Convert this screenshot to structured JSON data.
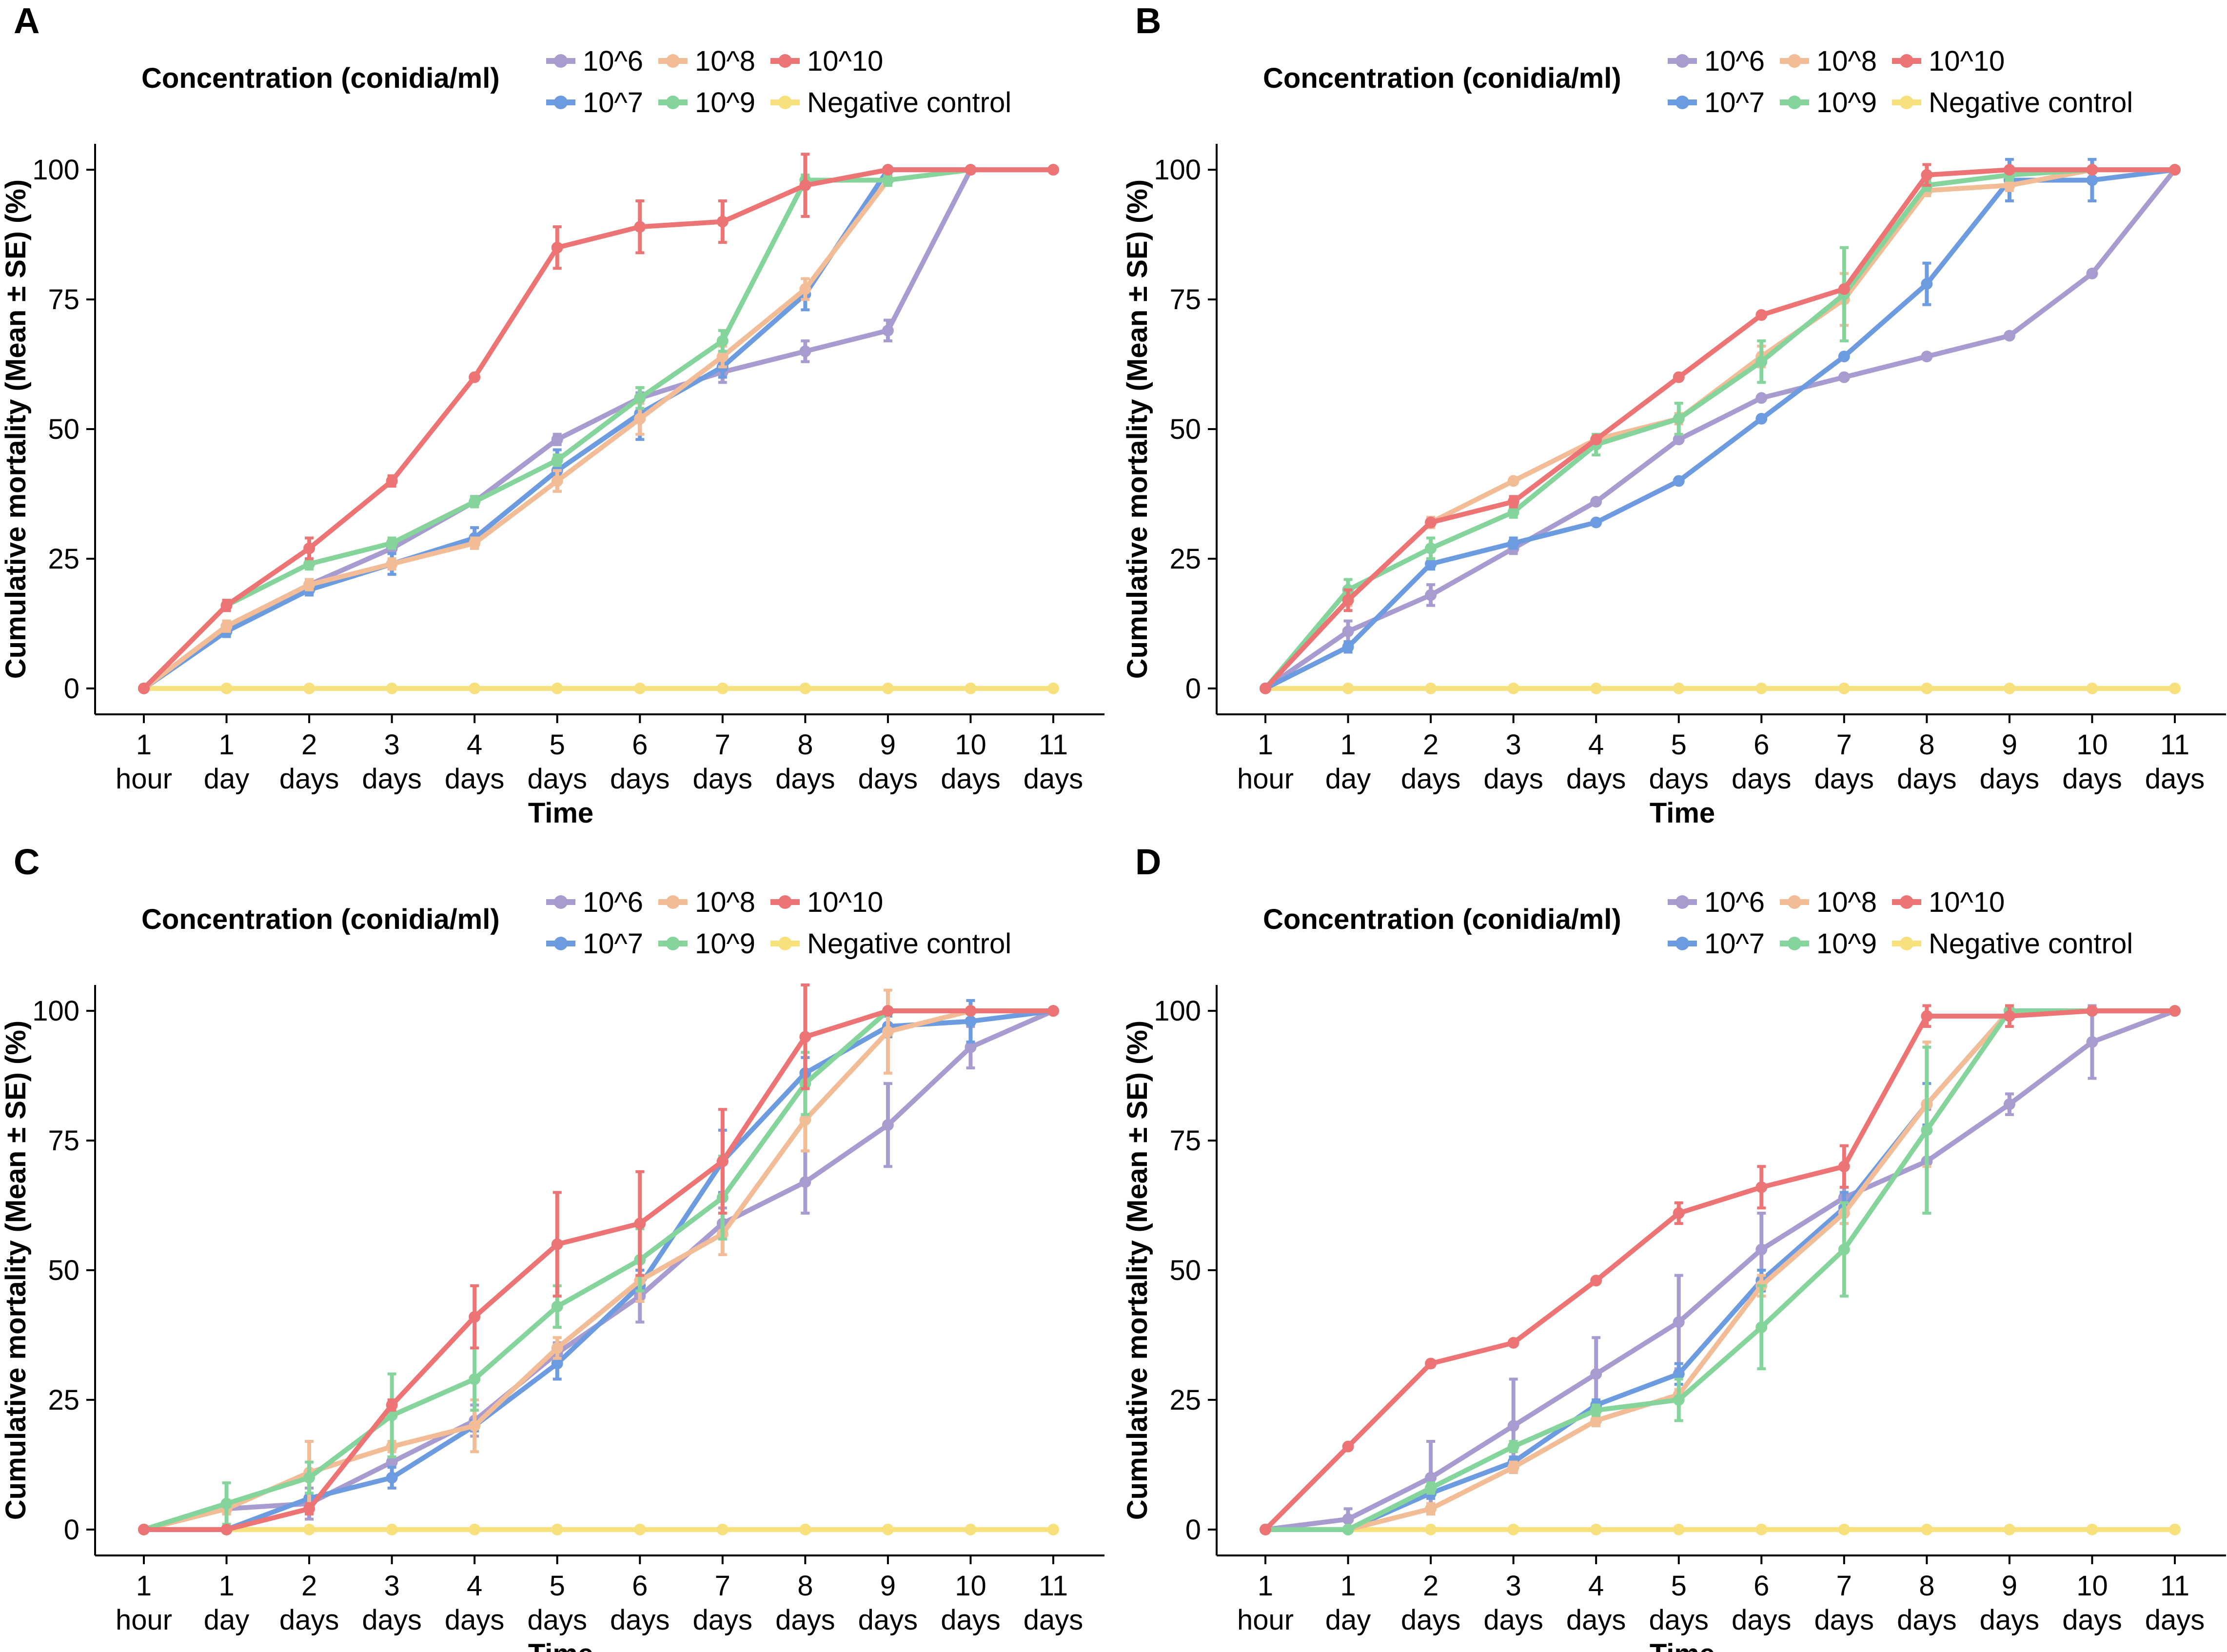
{
  "figure": {
    "x_categories": [
      [
        "1",
        "hour"
      ],
      [
        "1",
        "day"
      ],
      [
        "2",
        "days"
      ],
      [
        "3",
        "days"
      ],
      [
        "4",
        "days"
      ],
      [
        "5",
        "days"
      ],
      [
        "6",
        "days"
      ],
      [
        "7",
        "days"
      ],
      [
        "8",
        "days"
      ],
      [
        "9",
        "days"
      ],
      [
        "10",
        "days"
      ],
      [
        "11",
        "days"
      ]
    ],
    "xlabel": "Time",
    "ylabel": "Cumulative mortality (Mean ± SE) (%)",
    "y_ticks": [
      0,
      25,
      50,
      75,
      100
    ],
    "ylim": [
      -5,
      105
    ],
    "legend": {
      "title": "Concentration (conidia/ml)",
      "entries": [
        {
          "label": "10^6",
          "color": "#A89BCF"
        },
        {
          "label": "10^8",
          "color": "#F2BC96"
        },
        {
          "label": "10^10",
          "color": "#EC7474"
        },
        {
          "label": "10^7",
          "color": "#6C9BE0"
        },
        {
          "label": "10^9",
          "color": "#84D49C"
        },
        {
          "label": "Negative control",
          "color": "#F8E07C"
        }
      ]
    }
  },
  "chart_data": [
    {
      "panel": "A",
      "type": "line",
      "categories": [
        "1 hour",
        "1 day",
        "2 days",
        "3 days",
        "4 days",
        "5 days",
        "6 days",
        "7 days",
        "8 days",
        "9 days",
        "10 days",
        "11 days"
      ],
      "series": [
        {
          "name": "10^6",
          "color": "#A89BCF",
          "values": [
            0,
            12,
            20,
            27,
            36,
            48,
            56,
            61,
            65,
            69,
            100,
            100
          ],
          "se": [
            0,
            1,
            1,
            1,
            1,
            1,
            1,
            2,
            2,
            2,
            0,
            0
          ]
        },
        {
          "name": "10^7",
          "color": "#6C9BE0",
          "values": [
            0,
            11,
            19,
            24,
            29,
            42,
            53,
            62,
            76,
            100,
            100,
            100
          ],
          "se": [
            0,
            1,
            1,
            2,
            2,
            4,
            5,
            2,
            3,
            0,
            0,
            0
          ]
        },
        {
          "name": "10^8",
          "color": "#F2BC96",
          "values": [
            0,
            12,
            20,
            24,
            28,
            40,
            52,
            64,
            77,
            98,
            100,
            100
          ],
          "se": [
            0,
            1,
            1,
            1,
            1,
            2,
            3,
            2,
            2,
            1,
            0,
            0
          ]
        },
        {
          "name": "10^9",
          "color": "#84D49C",
          "values": [
            0,
            16,
            24,
            28,
            36,
            44,
            56,
            67,
            98,
            98,
            100,
            100
          ],
          "se": [
            0,
            1,
            1,
            1,
            1,
            1,
            2,
            2,
            1,
            1,
            0,
            0
          ]
        },
        {
          "name": "10^10",
          "color": "#EC7474",
          "values": [
            0,
            16,
            27,
            40,
            60,
            85,
            89,
            90,
            97,
            100,
            100,
            100
          ],
          "se": [
            0,
            1,
            2,
            1,
            0,
            4,
            5,
            4,
            6,
            0,
            0,
            0
          ]
        },
        {
          "name": "Negative control",
          "color": "#F8E07C",
          "values": [
            0,
            0,
            0,
            0,
            0,
            0,
            0,
            0,
            0,
            0,
            0,
            0
          ],
          "se": [
            0,
            0,
            0,
            0,
            0,
            0,
            0,
            0,
            0,
            0,
            0,
            0
          ]
        }
      ]
    },
    {
      "panel": "B",
      "type": "line",
      "categories": [
        "1 hour",
        "1 day",
        "2 days",
        "3 days",
        "4 days",
        "5 days",
        "6 days",
        "7 days",
        "8 days",
        "9 days",
        "10 days",
        "11 days"
      ],
      "series": [
        {
          "name": "10^6",
          "color": "#A89BCF",
          "values": [
            0,
            11,
            18,
            27,
            36,
            48,
            56,
            60,
            64,
            68,
            80,
            100
          ],
          "se": [
            0,
            2,
            2,
            1,
            0,
            0,
            0,
            0,
            0,
            0,
            0,
            0
          ]
        },
        {
          "name": "10^7",
          "color": "#6C9BE0",
          "values": [
            0,
            8,
            24,
            28,
            32,
            40,
            52,
            64,
            78,
            98,
            98,
            100
          ],
          "se": [
            0,
            1,
            1,
            1,
            0,
            0,
            0,
            0,
            4,
            4,
            4,
            0
          ]
        },
        {
          "name": "10^8",
          "color": "#F2BC96",
          "values": [
            0,
            17,
            32,
            40,
            48,
            52,
            64,
            75,
            96,
            97,
            100,
            100
          ],
          "se": [
            0,
            1,
            1,
            0,
            0,
            1,
            2,
            5,
            1,
            1,
            0,
            0
          ]
        },
        {
          "name": "10^9",
          "color": "#84D49C",
          "values": [
            0,
            19,
            27,
            34,
            47,
            52,
            63,
            76,
            97,
            99,
            100,
            100
          ],
          "se": [
            0,
            2,
            2,
            1,
            2,
            3,
            4,
            9,
            1,
            1,
            0,
            0
          ]
        },
        {
          "name": "10^10",
          "color": "#EC7474",
          "values": [
            0,
            17,
            32,
            36,
            48,
            60,
            72,
            77,
            99,
            100,
            100,
            100
          ],
          "se": [
            0,
            2,
            0,
            1,
            0,
            0,
            0,
            0,
            2,
            0,
            0,
            0
          ]
        },
        {
          "name": "Negative control",
          "color": "#F8E07C",
          "values": [
            0,
            0,
            0,
            0,
            0,
            0,
            0,
            0,
            0,
            0,
            0,
            0
          ],
          "se": [
            0,
            0,
            0,
            0,
            0,
            0,
            0,
            0,
            0,
            0,
            0,
            0
          ]
        }
      ]
    },
    {
      "panel": "C",
      "type": "line",
      "categories": [
        "1 hour",
        "1 day",
        "2 days",
        "3 days",
        "4 days",
        "5 days",
        "6 days",
        "7 days",
        "8 days",
        "9 days",
        "10 days",
        "11 days"
      ],
      "series": [
        {
          "name": "10^6",
          "color": "#A89BCF",
          "values": [
            0,
            4,
            5,
            13,
            21,
            34,
            45,
            59,
            67,
            78,
            93,
            100
          ],
          "se": [
            0,
            1,
            3,
            1,
            3,
            2,
            5,
            3,
            6,
            8,
            4,
            0
          ]
        },
        {
          "name": "10^7",
          "color": "#6C9BE0",
          "values": [
            0,
            0,
            6,
            10,
            20,
            32,
            47,
            71,
            88,
            97,
            98,
            100
          ],
          "se": [
            0,
            0,
            1,
            2,
            1,
            3,
            3,
            6,
            3,
            2,
            4,
            0
          ]
        },
        {
          "name": "10^8",
          "color": "#F2BC96",
          "values": [
            0,
            4,
            11,
            16,
            20,
            35,
            48,
            57,
            79,
            96,
            100,
            100
          ],
          "se": [
            0,
            1,
            6,
            1,
            5,
            2,
            4,
            4,
            6,
            8,
            0,
            0
          ]
        },
        {
          "name": "10^9",
          "color": "#84D49C",
          "values": [
            0,
            5,
            10,
            22,
            29,
            43,
            52,
            64,
            86,
            100,
            100,
            100
          ],
          "se": [
            0,
            4,
            3,
            8,
            6,
            4,
            6,
            8,
            6,
            0,
            0,
            0
          ]
        },
        {
          "name": "10^10",
          "color": "#EC7474",
          "values": [
            0,
            0,
            4,
            24,
            41,
            55,
            59,
            71,
            95,
            100,
            100,
            100
          ],
          "se": [
            0,
            0,
            1,
            1,
            6,
            10,
            10,
            10,
            10,
            0,
            0,
            0
          ]
        },
        {
          "name": "Negative control",
          "color": "#F8E07C",
          "values": [
            0,
            0,
            0,
            0,
            0,
            0,
            0,
            0,
            0,
            0,
            0,
            0
          ],
          "se": [
            0,
            0,
            0,
            0,
            0,
            0,
            0,
            0,
            0,
            0,
            0,
            0
          ]
        }
      ]
    },
    {
      "panel": "D",
      "type": "line",
      "categories": [
        "1 hour",
        "1 day",
        "2 days",
        "3 days",
        "4 days",
        "5 days",
        "6 days",
        "7 days",
        "8 days",
        "9 days",
        "10 days",
        "11 days"
      ],
      "series": [
        {
          "name": "10^6",
          "color": "#A89BCF",
          "values": [
            0,
            2,
            10,
            20,
            30,
            40,
            54,
            64,
            71,
            82,
            94,
            100
          ],
          "se": [
            0,
            2,
            7,
            9,
            7,
            9,
            7,
            2,
            10,
            2,
            7,
            0
          ]
        },
        {
          "name": "10^7",
          "color": "#6C9BE0",
          "values": [
            0,
            0,
            7,
            13,
            24,
            30,
            48,
            62,
            82,
            100,
            100,
            100
          ],
          "se": [
            0,
            0,
            1,
            1,
            1,
            2,
            2,
            3,
            4,
            0,
            0,
            0
          ]
        },
        {
          "name": "10^8",
          "color": "#F2BC96",
          "values": [
            0,
            0,
            4,
            12,
            21,
            26,
            47,
            61,
            82,
            100,
            100,
            100
          ],
          "se": [
            0,
            0,
            1,
            1,
            1,
            1,
            2,
            2,
            12,
            0,
            0,
            0
          ]
        },
        {
          "name": "10^9",
          "color": "#84D49C",
          "values": [
            0,
            0,
            8,
            16,
            23,
            25,
            39,
            54,
            77,
            100,
            100,
            100
          ],
          "se": [
            0,
            0,
            1,
            1,
            1,
            4,
            8,
            9,
            16,
            0,
            0,
            0
          ]
        },
        {
          "name": "10^10",
          "color": "#EC7474",
          "values": [
            0,
            16,
            32,
            36,
            48,
            61,
            66,
            70,
            99,
            99,
            100,
            100
          ],
          "se": [
            0,
            0,
            0,
            0,
            0,
            2,
            4,
            4,
            2,
            2,
            0,
            0
          ]
        },
        {
          "name": "Negative control",
          "color": "#F8E07C",
          "values": [
            0,
            0,
            0,
            0,
            0,
            0,
            0,
            0,
            0,
            0,
            0,
            0
          ],
          "se": [
            0,
            0,
            0,
            0,
            0,
            0,
            0,
            0,
            0,
            0,
            0,
            0
          ]
        }
      ]
    }
  ]
}
